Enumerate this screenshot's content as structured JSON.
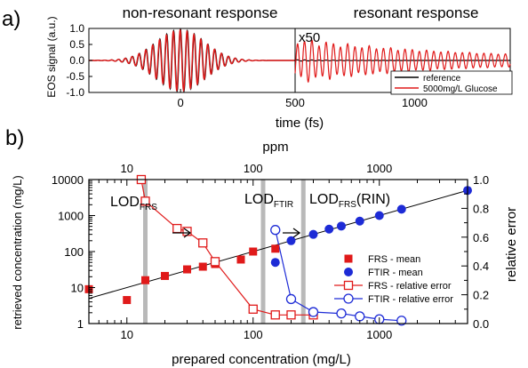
{
  "panel_a": {
    "label": "a)",
    "ylabel": "EOS signal (a.u.)",
    "xlabel": "time (fs)",
    "subtitle_left": "non-resonant response",
    "subtitle_right": "resonant response",
    "scale_note": "x50"
  },
  "panel_b": {
    "label": "b)",
    "top_axis_label": "ppm",
    "xlabel": "prepared concentration (mg/L)",
    "ylabel_left": "retrieved concentration (mg/L)",
    "ylabel_right": "relative error",
    "lod_frs_main": "LOD",
    "lod_frs_sub": "FRS",
    "lod_ftir_main": "LOD",
    "lod_ftir_sub": "FTIR",
    "lod_rin_main": "LOD",
    "lod_rin_sub": "FRS",
    "lod_rin_suffix": "(RIN)"
  },
  "colors": {
    "red": "#e01a1a",
    "blue": "#1d2bd6",
    "gray_band": "#b9b9b9"
  },
  "chart_data": [
    {
      "type": "line",
      "panel": "a-left",
      "title": "non-resonant response",
      "xlabel": "time (fs)",
      "ylabel": "EOS signal (a.u.)",
      "xlim": [
        -400,
        500
      ],
      "ylim": [
        -1.0,
        1.0
      ],
      "x_ticks": [
        0,
        500
      ],
      "y_ticks": [
        -1.0,
        -0.5,
        0.0,
        0.5,
        1.0
      ],
      "y_tick_labels": [
        "-1.0",
        "-0.5",
        "0.0",
        "0.5",
        "1.0"
      ],
      "series": [
        {
          "name": "reference",
          "color": "#000000",
          "shape": "gaussian-damped oscillation",
          "peak_amplitude": 0.97,
          "center_fs": 0,
          "period_fs": 30,
          "width_fs": 105
        },
        {
          "name": "5000mg/L Glucose",
          "color": "#e01a1a",
          "shape": "gaussian-damped oscillation",
          "peak_amplitude": 0.95,
          "center_fs": 0,
          "period_fs": 30,
          "width_fs": 105
        }
      ]
    },
    {
      "type": "line",
      "panel": "a-right",
      "title": "resonant response",
      "annotation": "x50",
      "xlim": [
        500,
        1400
      ],
      "ylim": [
        -1.0,
        1.0
      ],
      "x_ticks": [
        500,
        1000
      ],
      "x_tick_labels": [
        "500",
        "1000"
      ],
      "legend": "bottom-right",
      "legend_entries": [
        "reference",
        "5000mg/L Glucose"
      ],
      "series": [
        {
          "name": "reference",
          "color": "#000000",
          "shape": "near-zero after pulse"
        },
        {
          "name": "5000mg/L Glucose",
          "color": "#e01a1a",
          "shape": "decaying oscillation (x50)",
          "start_amplitude": 0.6,
          "end_amplitude": 0.18,
          "period_fs": 30
        }
      ]
    },
    {
      "type": "scatter",
      "panel": "b",
      "xlabel": "prepared concentration (mg/L)",
      "ylabel": "retrieved concentration (mg/L)",
      "y2label": "relative error",
      "top_axis_label": "ppm",
      "x_scale": "log",
      "y_scale": "log",
      "xlim": [
        5,
        5000
      ],
      "ylim": [
        1,
        10000
      ],
      "y2lim": [
        0.0,
        1.0
      ],
      "x_tick_labels": [
        "10",
        "100",
        "1000"
      ],
      "x_top_tick_labels": [
        "10",
        "100",
        "1000"
      ],
      "y_tick_labels": [
        "1",
        "10",
        "100",
        "1000",
        "10000"
      ],
      "y2_tick_labels": [
        "0.0",
        "0.2",
        "0.4",
        "0.6",
        "0.8",
        "1.0"
      ],
      "lod_bands_mgL": {
        "FRS": 14,
        "FTIR": 120,
        "FRS(RIN)": 250
      },
      "legend": "center-right",
      "reference_line": {
        "x": [
          5,
          5000
        ],
        "y": [
          5,
          5000
        ],
        "color": "#000000"
      },
      "series": [
        {
          "name": "FRS - mean",
          "marker": "filled-square",
          "color": "#e01a1a",
          "axis": "left",
          "x": [
            5,
            10,
            14,
            20,
            30,
            40,
            50,
            80,
            100,
            150
          ],
          "y": [
            9,
            4.5,
            16,
            21,
            32,
            38,
            45,
            60,
            100,
            120
          ]
        },
        {
          "name": "FTIR - mean",
          "marker": "filled-circle",
          "color": "#1d2bd6",
          "axis": "left",
          "x": [
            150,
            200,
            300,
            400,
            500,
            700,
            1000,
            1500,
            5000
          ],
          "y": [
            50,
            200,
            300,
            420,
            510,
            700,
            1000,
            1500,
            5000
          ]
        },
        {
          "name": "FRS - relative error",
          "marker": "open-square",
          "color": "#e01a1a",
          "axis": "right",
          "x": [
            13,
            14,
            25,
            30,
            40,
            50,
            100,
            150,
            200,
            300
          ],
          "y": [
            1.0,
            0.85,
            0.66,
            0.64,
            0.56,
            0.43,
            0.1,
            0.06,
            0.06,
            0.06
          ]
        },
        {
          "name": "FTIR - relative error",
          "marker": "open-circle",
          "color": "#1d2bd6",
          "axis": "right",
          "x": [
            150,
            200,
            300,
            500,
            700,
            1000,
            1500
          ],
          "y": [
            0.65,
            0.17,
            0.08,
            0.07,
            0.05,
            0.03,
            0.02
          ]
        }
      ]
    }
  ]
}
